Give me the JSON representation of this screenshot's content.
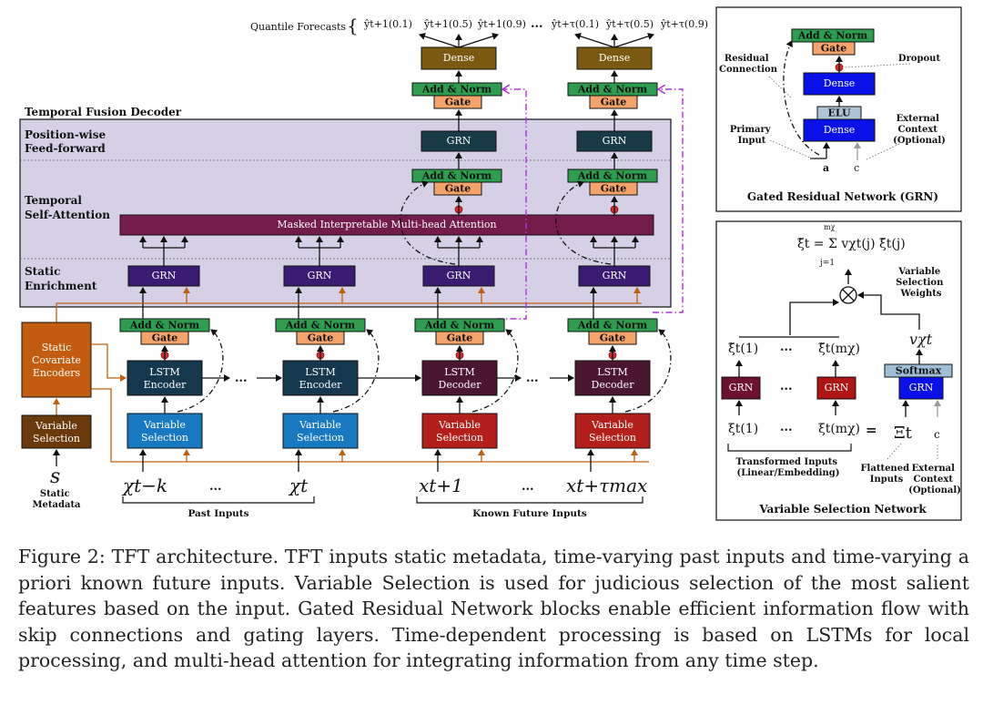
{
  "caption": "Figure 2: TFT architecture. TFT inputs static metadata, time-varying past inputs and time-varying a priori known future inputs. Variable Selection is used for judicious selection of the most salient features based on the input. Gated Residual Network blocks enable efficient information flow with skip connections and gating layers. Time-dependent processing is based on LSTMs for local processing, and multi-head attention for integrating information from any time step.",
  "main": {
    "quantile_label": "Quantile Forecasts",
    "quantiles_left": [
      "ŷt+1(0.1)",
      "ŷt+1(0.5)",
      "ŷt+1(0.9)"
    ],
    "quantiles_right": [
      "ŷt+τ(0.1)",
      "ŷt+τ(0.5)",
      "ŷt+τ(0.9)"
    ],
    "ellipsis": "...",
    "decoder_title": "Temporal Fusion Decoder",
    "row_pwff": [
      "Position-wise",
      "Feed-forward"
    ],
    "row_tsa": [
      "Temporal",
      "Self-Attention"
    ],
    "row_se": [
      "Static",
      "Enrichment"
    ],
    "attention_label": "Masked Interpretable Multi-head Attention",
    "dense": "Dense",
    "add_norm": "Add & Norm",
    "gate": "Gate",
    "grn": "GRN",
    "lstm_enc": [
      "LSTM",
      "Encoder"
    ],
    "lstm_dec": [
      "LSTM",
      "Decoder"
    ],
    "var_sel": [
      "Variable",
      "Selection"
    ],
    "static_enc": [
      "Static",
      "Covariate",
      "Encoders"
    ],
    "static_var_sel": [
      "Variable",
      "Selection"
    ],
    "static_symbol": "s",
    "static_meta": [
      "Static",
      "Metadata"
    ],
    "inputs": [
      "χt−k",
      "...",
      "χt",
      "xt+1",
      "...",
      "xt+τmax"
    ],
    "past_inputs": "Past Inputs",
    "future_inputs": "Known Future Inputs"
  },
  "grn_panel": {
    "title": "Gated Residual Network (GRN)",
    "add_norm": "Add & Norm",
    "gate": "Gate",
    "dense": "Dense",
    "elu": "ELU",
    "residual": [
      "Residual",
      "Connection"
    ],
    "dropout": "Dropout",
    "primary": [
      "Primary",
      "Input"
    ],
    "external": [
      "External",
      "Context",
      "(Optional)"
    ],
    "a": "a",
    "c": "c"
  },
  "vsn_panel": {
    "title": "Variable Selection Network",
    "formula": "ξ̃t = Σ vχt(j) ξ̃t(j)",
    "sum_top": "mχ",
    "sum_bottom": "j=1",
    "weights": [
      "Variable",
      "Selection",
      "Weights"
    ],
    "v": "vχt",
    "softmax": "Softmax",
    "grn": "GRN",
    "xi_tilde_1": "ξ̃t(1)",
    "xi_tilde_m": "ξ̃t(mχ)",
    "xi_1": "ξt(1)",
    "xi_m": "ξt(mχ)",
    "ellipsis": "...",
    "equals": "=",
    "Xi": "Ξt",
    "c": "c",
    "transformed": [
      "Transformed Inputs",
      "(Linear/Embedding)"
    ],
    "flattened": [
      "Flattened",
      "Inputs"
    ],
    "external": [
      "External",
      "Context",
      "(Optional)"
    ]
  },
  "colors": {
    "dense": "#7a5a10",
    "add_norm": "#2e9d4f",
    "gate": "#f4a46a",
    "grn_dark": "#183b47",
    "grn_purple": "#3a1c73",
    "attention": "#731c4a",
    "lstm_enc": "#15384f",
    "lstm_dec": "#4a1630",
    "vs_blue": "#1878c0",
    "vs_red": "#b31f1a",
    "static_enc": "#c25c10",
    "static_vs": "#6b3a0c",
    "decoder_bg": "#d6d0e6",
    "title_purple": "#6a4fa8",
    "blue_dense": "#0a10e8",
    "elu": "#aec3d6",
    "vsn_grn_purple": "#6e1030",
    "vsn_grn_red": "#b01515",
    "softmax": "#9fbfd9",
    "orange_line": "#c0600e",
    "magenta_dash": "#b030e0"
  }
}
